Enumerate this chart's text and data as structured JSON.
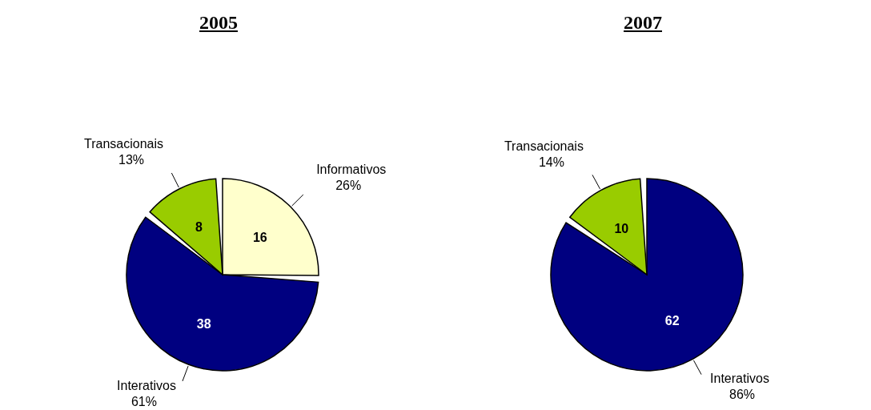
{
  "chart_data": [
    {
      "type": "pie",
      "title": "2005",
      "categories": [
        "Informativos",
        "Interativos",
        "Transacionais"
      ],
      "values": [
        26,
        61,
        13
      ],
      "colors": [
        "#ffffcc",
        "#000080",
        "#99cc00"
      ],
      "value_labels": [
        "26%",
        "61%",
        "13%"
      ],
      "annotations": [
        {
          "text": "16",
          "x": "Informativos"
        },
        {
          "text": "38",
          "x": "Interativos"
        },
        {
          "text": "8",
          "x": "Transacionais"
        }
      ],
      "legend": false
    },
    {
      "type": "pie",
      "title": "2007",
      "categories": [
        "Interativos",
        "Transacionais"
      ],
      "values": [
        86,
        14
      ],
      "colors": [
        "#000080",
        "#99cc00"
      ],
      "value_labels": [
        "86%",
        "14%"
      ],
      "annotations": [
        {
          "text": "62",
          "x": "Interativos"
        },
        {
          "text": "10",
          "x": "Transacionais"
        }
      ],
      "legend": false
    }
  ]
}
